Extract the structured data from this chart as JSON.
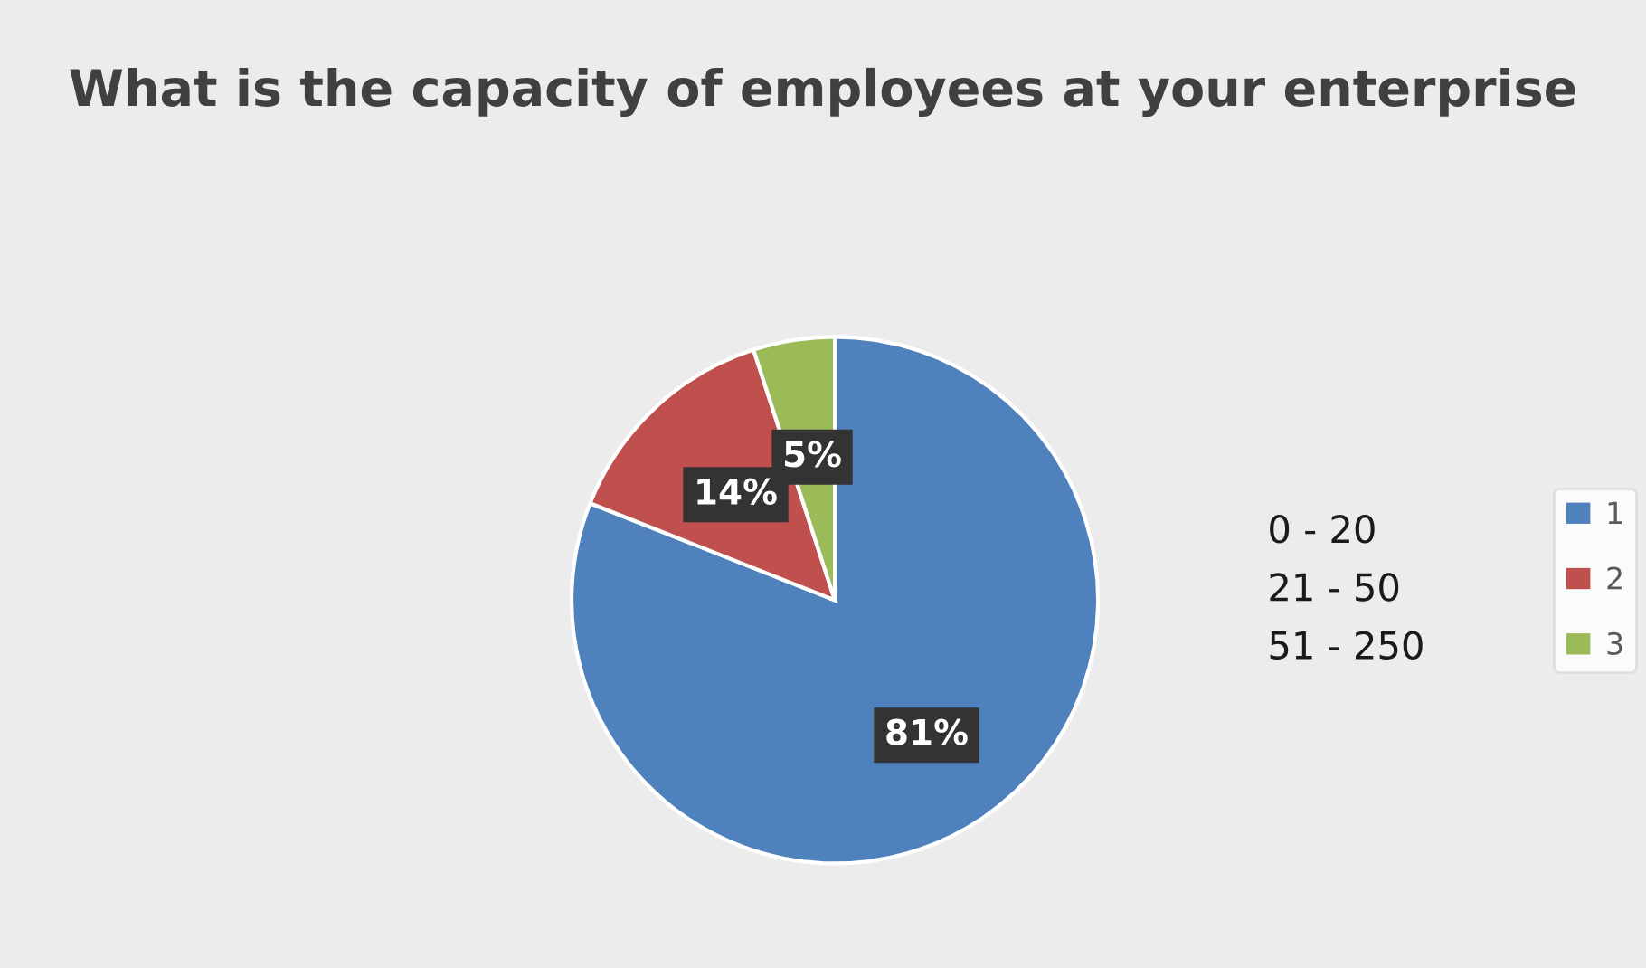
{
  "chart_data": {
    "type": "pie",
    "title": "What is the capacity of employees at your enterprise",
    "categories": [
      "1",
      "2",
      "3"
    ],
    "values": [
      81,
      14,
      5
    ],
    "colors": [
      "#4f81bd",
      "#c0504d",
      "#9bbb59"
    ],
    "value_labels": [
      "81%",
      "14%",
      "5%"
    ],
    "annotations": [
      "0 - 20",
      "21 - 50",
      "51 - 250"
    ],
    "legend": "right"
  }
}
